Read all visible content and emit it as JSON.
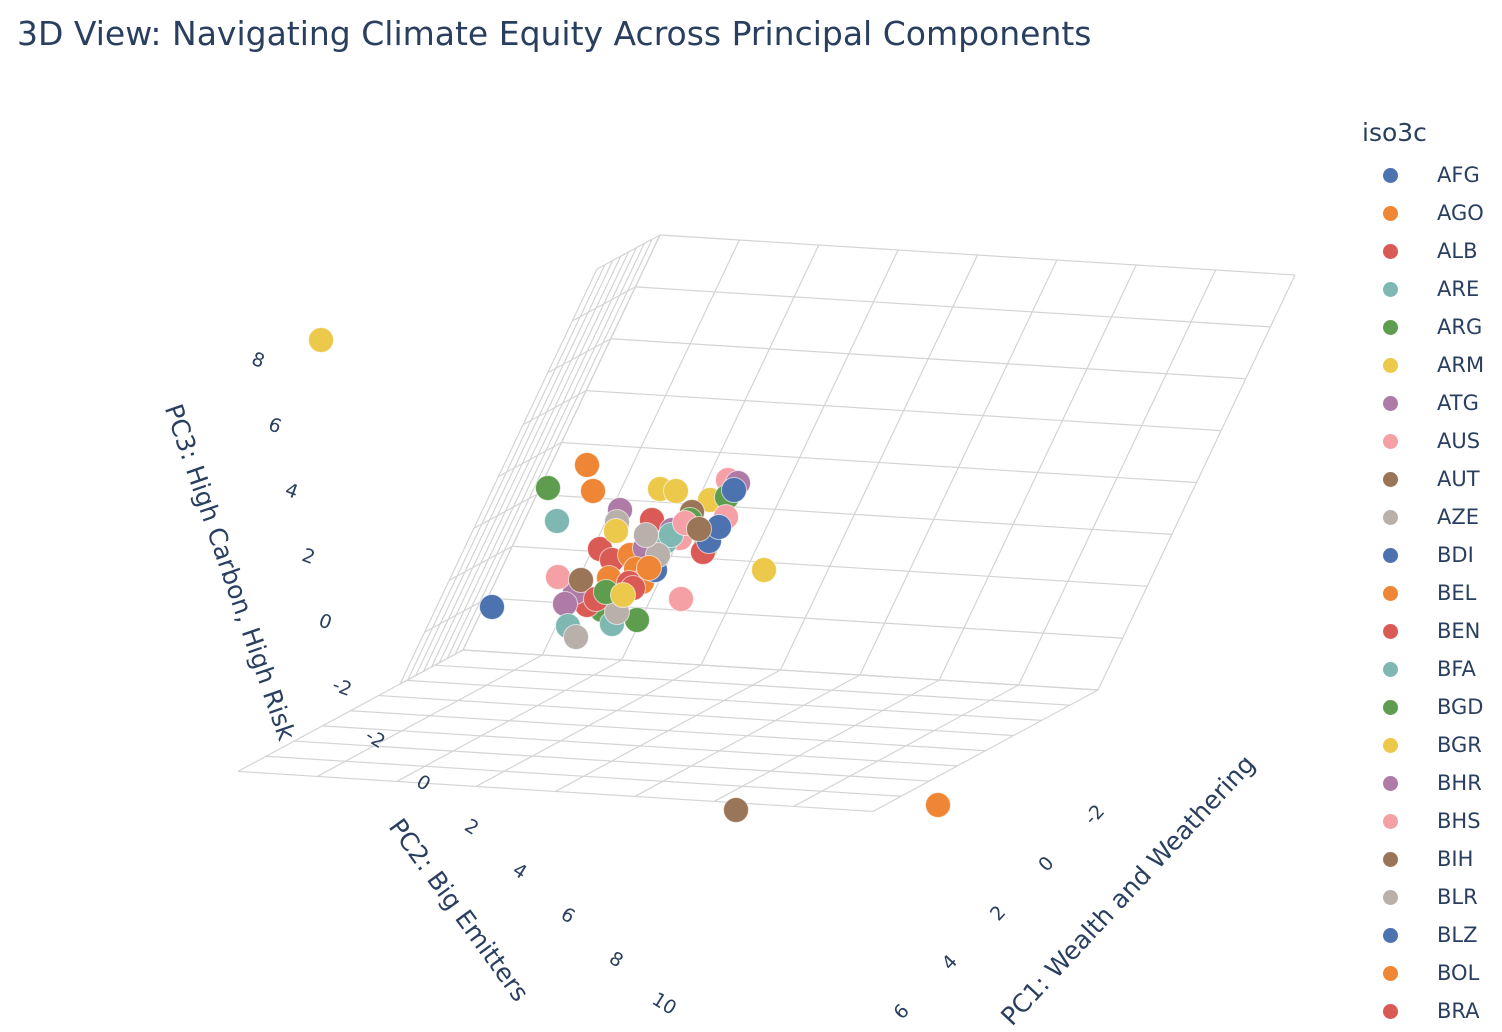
{
  "chart_data": {
    "type": "scatter",
    "title": "3D View: Navigating Climate Equity Across Principal Components",
    "axes": {
      "x": {
        "label": "PC1: Wealth and Weathering",
        "ticks": [
          "-2",
          "0",
          "2",
          "4",
          "6"
        ]
      },
      "y": {
        "label": "PC2: Big Emitters",
        "ticks": [
          "-2",
          "0",
          "2",
          "4",
          "6",
          "8",
          "10"
        ]
      },
      "z": {
        "label": "PC3: High Carbon, High Risk",
        "ticks": [
          "-2",
          "0",
          "2",
          "4",
          "6",
          "8"
        ]
      }
    },
    "legend": {
      "title": "iso3c",
      "placement": "right",
      "items": [
        {
          "name": "AFG",
          "color": "#4c72b0"
        },
        {
          "name": "AGO",
          "color": "#ef8636"
        },
        {
          "name": "ALB",
          "color": "#da5a55"
        },
        {
          "name": "ARE",
          "color": "#7fb8b2"
        },
        {
          "name": "ARG",
          "color": "#5e9d4e"
        },
        {
          "name": "ARM",
          "color": "#ecc94b"
        },
        {
          "name": "ATG",
          "color": "#ad7ba6"
        },
        {
          "name": "AUS",
          "color": "#f4a0a4"
        },
        {
          "name": "AUT",
          "color": "#9b7558"
        },
        {
          "name": "AZE",
          "color": "#bab0ab"
        },
        {
          "name": "BDI",
          "color": "#4c72b0"
        },
        {
          "name": "BEL",
          "color": "#ef8636"
        },
        {
          "name": "BEN",
          "color": "#da5a55"
        },
        {
          "name": "BFA",
          "color": "#7fb8b2"
        },
        {
          "name": "BGD",
          "color": "#5e9d4e"
        },
        {
          "name": "BGR",
          "color": "#ecc94b"
        },
        {
          "name": "BHR",
          "color": "#ad7ba6"
        },
        {
          "name": "BHS",
          "color": "#f4a0a4"
        },
        {
          "name": "BIH",
          "color": "#9b7558"
        },
        {
          "name": "BLR",
          "color": "#bab0ab"
        },
        {
          "name": "BLZ",
          "color": "#4c72b0"
        },
        {
          "name": "BOL",
          "color": "#ef8636"
        },
        {
          "name": "BRA",
          "color": "#da5a55"
        }
      ]
    },
    "palette": [
      "#4c72b0",
      "#ef8636",
      "#da5a55",
      "#7fb8b2",
      "#5e9d4e",
      "#ecc94b",
      "#ad7ba6",
      "#f4a0a4",
      "#9b7558",
      "#bab0ab"
    ]
  }
}
